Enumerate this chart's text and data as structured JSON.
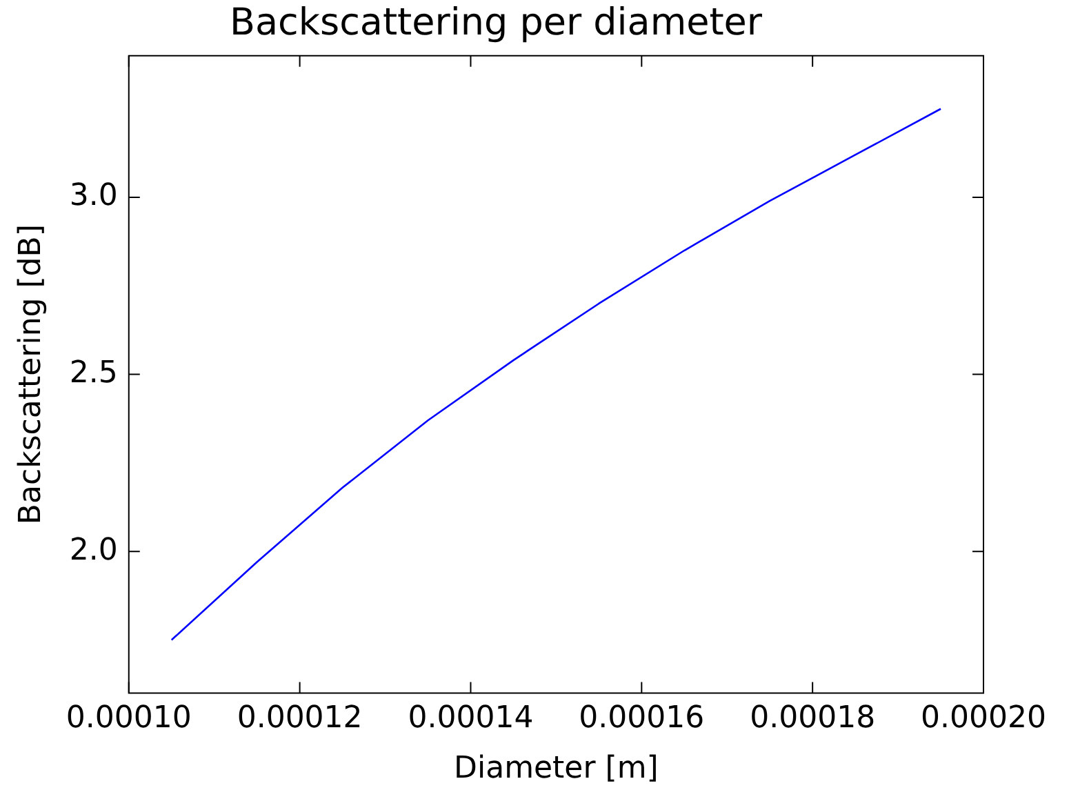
{
  "chart_data": {
    "type": "line",
    "title": "Backscattering per diameter",
    "xlabel": "Diameter [m]",
    "ylabel": "Backscattering [dB]",
    "x": [
      0.000105,
      0.000115,
      0.000125,
      0.000135,
      0.000145,
      0.000155,
      0.000165,
      0.000175,
      0.000185,
      0.000195
    ],
    "series": [
      {
        "color": "#0000ff",
        "values": [
          1.75,
          1.97,
          2.18,
          2.37,
          2.54,
          2.7,
          2.85,
          2.99,
          3.12,
          3.25
        ]
      }
    ],
    "xlim": [
      0.0001,
      0.0002
    ],
    "ylim": [
      1.6,
      3.4
    ],
    "xticks": [
      {
        "value": 0.0001,
        "label": "0.00010"
      },
      {
        "value": 0.00012,
        "label": "0.00012"
      },
      {
        "value": 0.00014,
        "label": "0.00014"
      },
      {
        "value": 0.00016,
        "label": "0.00016"
      },
      {
        "value": 0.00018,
        "label": "0.00018"
      },
      {
        "value": 0.0002,
        "label": "0.00020"
      }
    ],
    "yticks": [
      {
        "value": 2,
        "label": "2.0"
      },
      {
        "value": 2.5,
        "label": "2.5"
      },
      {
        "value": 3,
        "label": "3.0"
      }
    ],
    "grid": false,
    "legend": false,
    "marker": "none",
    "line_style": "solid"
  }
}
